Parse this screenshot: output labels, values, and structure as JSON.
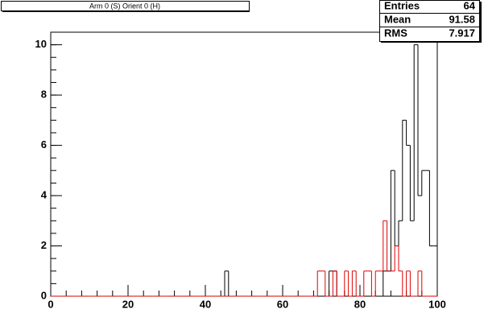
{
  "chart_data": {
    "type": "histogram",
    "title": "Arm 0 (S) Orient 0 (H)",
    "stats": [
      {
        "label": "Entries",
        "value": 64
      },
      {
        "label": "Mean",
        "value": 91.58
      },
      {
        "label": "RMS",
        "value": 7.917
      }
    ],
    "bins": [
      0,
      1,
      2,
      3,
      4,
      5,
      6,
      7,
      8,
      9,
      10,
      11,
      12,
      13,
      14,
      15,
      16,
      17,
      18,
      19,
      20,
      21,
      22,
      23,
      24,
      25,
      26,
      27,
      28,
      29,
      30,
      31,
      32,
      33,
      34,
      35,
      36,
      37,
      38,
      39,
      40,
      41,
      42,
      43,
      44,
      45,
      46,
      47,
      48,
      49,
      50,
      51,
      52,
      53,
      54,
      55,
      56,
      57,
      58,
      59,
      60,
      61,
      62,
      63,
      64,
      65,
      66,
      67,
      68,
      69,
      70,
      71,
      72,
      73,
      74,
      75,
      76,
      77,
      78,
      79,
      80,
      81,
      82,
      83,
      84,
      85,
      86,
      87,
      88,
      89,
      90,
      91,
      92,
      93,
      94,
      95,
      96,
      97,
      98,
      99,
      100
    ],
    "series": [
      {
        "color": "#000000",
        "values": [
          0,
          0,
          0,
          0,
          0,
          0,
          0,
          0,
          0,
          0,
          0,
          0,
          0,
          0,
          0,
          0,
          0,
          0,
          0,
          0,
          0,
          0,
          0,
          0,
          0,
          0,
          0,
          0,
          0,
          0,
          0,
          0,
          0,
          0,
          0,
          0,
          0,
          0,
          0,
          0,
          0,
          0,
          0,
          0,
          0,
          1,
          0,
          0,
          0,
          0,
          0,
          0,
          0,
          0,
          0,
          0,
          0,
          0,
          0,
          0,
          0,
          0,
          0,
          0,
          0,
          0,
          0,
          0,
          0,
          0,
          0,
          0,
          1,
          1,
          0,
          0,
          0,
          0,
          0,
          0,
          0,
          0,
          0,
          0,
          0,
          0,
          1,
          1,
          5,
          2,
          3,
          7,
          6,
          3,
          10,
          4,
          5,
          5,
          2,
          2
        ]
      },
      {
        "color": "#e00000",
        "values": [
          0,
          0,
          0,
          0,
          0,
          0,
          0,
          0,
          0,
          0,
          0,
          0,
          0,
          0,
          0,
          0,
          0,
          0,
          0,
          0,
          0,
          0,
          0,
          0,
          0,
          0,
          0,
          0,
          0,
          0,
          0,
          0,
          0,
          0,
          0,
          0,
          0,
          0,
          0,
          0,
          0,
          0,
          0,
          0,
          0,
          0,
          0,
          0,
          0,
          0,
          0,
          0,
          0,
          0,
          0,
          0,
          0,
          0,
          0,
          0,
          0,
          0,
          0,
          0,
          0,
          0,
          0,
          0,
          0,
          1,
          1,
          0,
          0,
          1,
          0,
          0,
          1,
          0,
          1,
          0,
          0,
          1,
          1,
          0,
          1,
          1,
          3,
          1,
          1,
          2,
          1,
          0,
          1,
          0,
          0,
          1,
          0,
          0,
          0,
          0
        ]
      }
    ],
    "xlim": [
      0,
      100
    ],
    "xticks": [
      0,
      20,
      40,
      60,
      80,
      100
    ],
    "ylim": [
      0,
      10.5
    ],
    "yticks": [
      0,
      2,
      4,
      6,
      8,
      10
    ]
  }
}
